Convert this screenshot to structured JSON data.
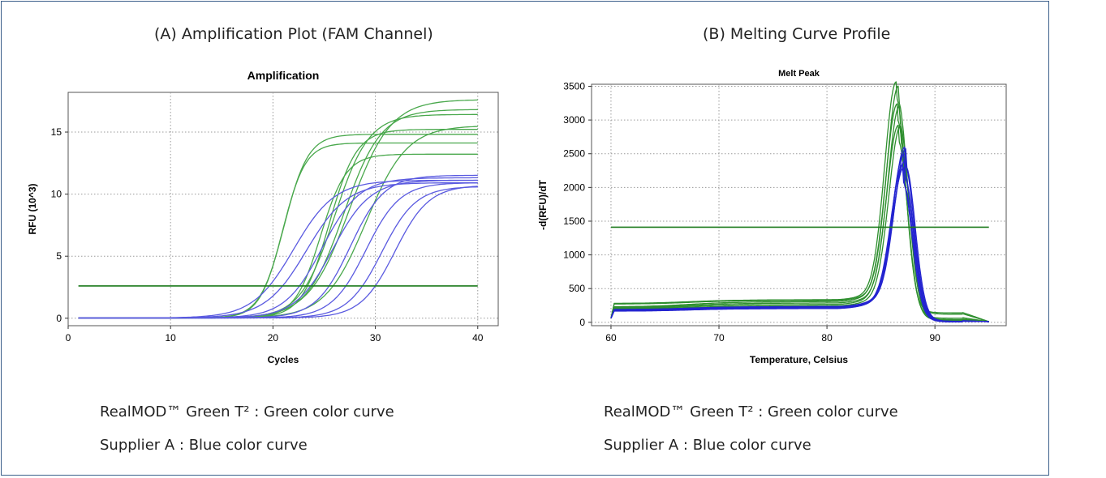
{
  "captions": {
    "left": "(A) Amplification Plot (FAM Channel)",
    "right": "(B) Melting Curve Profile"
  },
  "legend_text": {
    "left": {
      "green": "RealMOD™ Green T² : Green color curve",
      "blue": "Supplier A : Blue color curve"
    },
    "right": {
      "green": "RealMOD™ Green T² : Green color curve",
      "blue": "Supplier A : Blue color curve"
    }
  },
  "colors": {
    "green_curve": "#49a84c",
    "blue_curve": "#5a5ae0",
    "threshold": "#1b7a1b",
    "melt_blue": "#2424d0",
    "melt_green": "#2e8f2e"
  },
  "chart_data": [
    {
      "type": "line",
      "title": "Amplification",
      "xlabel": "Cycles",
      "ylabel": "RFU (10^3)",
      "xlim": [
        0,
        42
      ],
      "ylim": [
        -0.6,
        18.2
      ],
      "xticks": [
        0,
        10,
        20,
        30,
        40
      ],
      "yticks": [
        0,
        5,
        10,
        15
      ],
      "grid": true,
      "threshold": 2.6,
      "series": [
        {
          "group": "green",
          "ct": 22.6,
          "plateau": 14.1,
          "k": 0.9
        },
        {
          "group": "green",
          "ct": 22.9,
          "plateau": 14.8,
          "k": 0.85
        },
        {
          "group": "green",
          "ct": 26.4,
          "plateau": 13.2,
          "k": 0.8
        },
        {
          "group": "green",
          "ct": 27.6,
          "plateau": 15.2,
          "k": 0.75
        },
        {
          "group": "green",
          "ct": 28.8,
          "plateau": 16.4,
          "k": 0.6
        },
        {
          "group": "green",
          "ct": 30.0,
          "plateau": 16.8,
          "k": 0.55
        },
        {
          "group": "green",
          "ct": 31.0,
          "plateau": 17.6,
          "k": 0.5
        },
        {
          "group": "green",
          "ct": 32.3,
          "plateau": 15.5,
          "k": 0.5
        },
        {
          "group": "blue",
          "ct": 24.4,
          "plateau": 11.1,
          "k": 0.5
        },
        {
          "group": "blue",
          "ct": 25.6,
          "plateau": 10.9,
          "k": 0.5
        },
        {
          "group": "blue",
          "ct": 27.0,
          "plateau": 11.3,
          "k": 0.55
        },
        {
          "group": "blue",
          "ct": 28.0,
          "plateau": 11.1,
          "k": 0.55
        },
        {
          "group": "blue",
          "ct": 29.6,
          "plateau": 11.5,
          "k": 0.6
        },
        {
          "group": "blue",
          "ct": 31.0,
          "plateau": 10.9,
          "k": 0.6
        },
        {
          "group": "blue",
          "ct": 32.5,
          "plateau": 10.6,
          "k": 0.6
        },
        {
          "group": "blue",
          "ct": 33.8,
          "plateau": 10.7,
          "k": 0.6
        }
      ]
    },
    {
      "type": "line",
      "title": "Melt Peak",
      "xlabel": "Temperature, Celsius",
      "ylabel": "-d(RFU)/dT",
      "xlim": [
        58.2,
        96.6
      ],
      "ylim": [
        -50,
        3530
      ],
      "xticks": [
        60,
        70,
        80,
        90
      ],
      "yticks": [
        0,
        500,
        1000,
        1500,
        2000,
        2500,
        3000,
        3500
      ],
      "grid": true,
      "threshold": 1410,
      "series": [
        {
          "group": "green",
          "peak": 3350,
          "base": 280,
          "rise": 330,
          "ptemp": 86.4,
          "tail": 140
        },
        {
          "group": "green",
          "peak": 3280,
          "base": 270,
          "rise": 320,
          "ptemp": 86.6,
          "tail": 120
        },
        {
          "group": "green",
          "peak": 3020,
          "base": 230,
          "rise": 300,
          "ptemp": 86.5,
          "tail": 60
        },
        {
          "group": "green",
          "peak": 2980,
          "base": 220,
          "rise": 280,
          "ptemp": 86.7,
          "tail": 40
        },
        {
          "group": "green",
          "peak": 2700,
          "base": 210,
          "rise": 260,
          "ptemp": 86.6,
          "tail": 30
        },
        {
          "group": "green",
          "peak": 2680,
          "base": 200,
          "rise": 240,
          "ptemp": 86.8,
          "tail": 20
        },
        {
          "group": "blue",
          "peak": 2350,
          "base": 190,
          "rise": 230,
          "ptemp": 87.2,
          "tail": 15
        },
        {
          "group": "blue",
          "peak": 2320,
          "base": 185,
          "rise": 220,
          "ptemp": 87.3,
          "tail": 12
        },
        {
          "group": "blue",
          "peak": 2250,
          "base": 180,
          "rise": 215,
          "ptemp": 87.1,
          "tail": 10
        },
        {
          "group": "blue",
          "peak": 2150,
          "base": 175,
          "rise": 210,
          "ptemp": 87.2,
          "tail": 8
        },
        {
          "group": "blue",
          "peak": 2100,
          "base": 170,
          "rise": 205,
          "ptemp": 87.0,
          "tail": 6
        },
        {
          "group": "blue",
          "peak": 2050,
          "base": 165,
          "rise": 200,
          "ptemp": 87.1,
          "tail": 5
        }
      ]
    }
  ]
}
